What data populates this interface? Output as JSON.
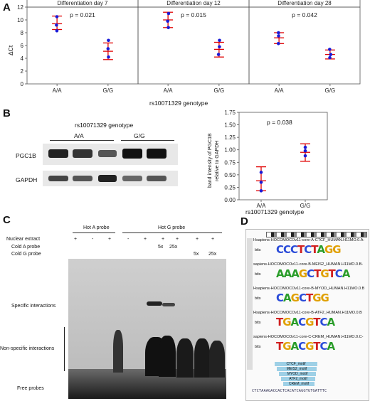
{
  "panelA": {
    "letter": "A",
    "ylabel": "ΔCt",
    "xlabel": "rs10071329 genotype",
    "yticks": [
      "0",
      "2",
      "4",
      "6",
      "8",
      "10",
      "12"
    ],
    "facets": [
      {
        "title": "Differentiation day 7",
        "pvalue": "p = 0.021",
        "categories": [
          "A/A",
          "G/G"
        ],
        "groups": [
          {
            "points": [
              9.2,
              10.5,
              8.3
            ],
            "mean": 9.4,
            "lo": 8.5,
            "hi": 10.6
          },
          {
            "points": [
              5.5,
              4.2,
              6.8
            ],
            "mean": 5.1,
            "lo": 3.8,
            "hi": 6.4
          }
        ]
      },
      {
        "title": "Differentiation day 12",
        "pvalue": "p = 0.015",
        "categories": [
          "A/A",
          "G/G"
        ],
        "groups": [
          {
            "points": [
              9.8,
              11.0,
              8.8
            ],
            "mean": 10.0,
            "lo": 8.8,
            "hi": 11.2
          },
          {
            "points": [
              5.8,
              4.6,
              6.8
            ],
            "mean": 5.4,
            "lo": 4.2,
            "hi": 6.5
          }
        ]
      },
      {
        "title": "Differentiation day 28",
        "pvalue": "p = 0.042",
        "categories": [
          "A/A",
          "G/G"
        ],
        "groups": [
          {
            "points": [
              7.5,
              8.0,
              6.3
            ],
            "mean": 7.2,
            "lo": 6.3,
            "hi": 8.0
          },
          {
            "points": [
              4.6,
              5.4,
              4.1
            ],
            "mean": 4.6,
            "lo": 3.9,
            "hi": 5.3
          }
        ]
      }
    ]
  },
  "panelB": {
    "letter": "B",
    "blot_title": "rs10071329 genotype",
    "blot_groups": [
      "A/A",
      "G/G"
    ],
    "blot_rows": [
      "PGC1B",
      "GAPDH"
    ],
    "ylabel_line1": "band intensity of PGC1B",
    "ylabel_line2": "relative to GAPDH",
    "xlabel": "rs10071329 genotype",
    "pvalue": "p = 0.038",
    "yticks": [
      "0.00",
      "0.25",
      "0.50",
      "0.75",
      "1.00",
      "1.25",
      "1.50",
      "1.75"
    ],
    "chart_data": {
      "type": "scatter",
      "categories": [
        "A/A",
        "G/G"
      ],
      "groups": [
        {
          "points": [
            0.55,
            0.35,
            0.18
          ],
          "mean": 0.38,
          "lo": 0.18,
          "hi": 0.66
        },
        {
          "points": [
            1.05,
            0.98,
            0.88
          ],
          "mean": 0.95,
          "lo": 0.77,
          "hi": 1.12
        }
      ],
      "ylim": [
        0,
        1.75
      ]
    }
  },
  "panelC": {
    "letter": "C",
    "probe_headers": [
      "Hot A probe",
      "Hot G probe"
    ],
    "row_labels": [
      "Nuclear extract",
      "Cold A probe",
      "Cold G probe"
    ],
    "nuclear": [
      "+",
      "-",
      "+",
      "-",
      "+",
      "+",
      "+",
      "+",
      "+"
    ],
    "coldA": [
      "5x",
      "25x"
    ],
    "coldG": [
      "5x",
      "25x"
    ],
    "side_labels": [
      "Specific interactions",
      "Non-specific interactions",
      "Free probes"
    ]
  },
  "panelD": {
    "letter": "D",
    "motifs": [
      "Hsapiens-HOCOMOCOv11-core-A-CTCF_HUMAN.H11MO.0.A-",
      "sapiens-HOCOMOCOv11-core-B-MEIS2_HUMAN.H11MO.0.B-",
      "Hsapiens-HOCOMOCOv11-core-B-MYOD_HUMAN.H11MO.0.B",
      "Hsapiens-HOCOMOCOv11-core-B-ATF2_HUMAN.H11MO.0.B",
      "sapiens-HOCOMOCOv11-core-C-CREM_HUMAN.H11MO.0.C-"
    ],
    "track_labels": [
      "CTCF_motif",
      "MEIS2_motif",
      "MYOD_motif",
      "ATF2_motif",
      "CREM_motif"
    ],
    "bits_label": "bits",
    "sequence": "CTCTAAAGACCACTCACATCAGGTGTGATTTC"
  }
}
